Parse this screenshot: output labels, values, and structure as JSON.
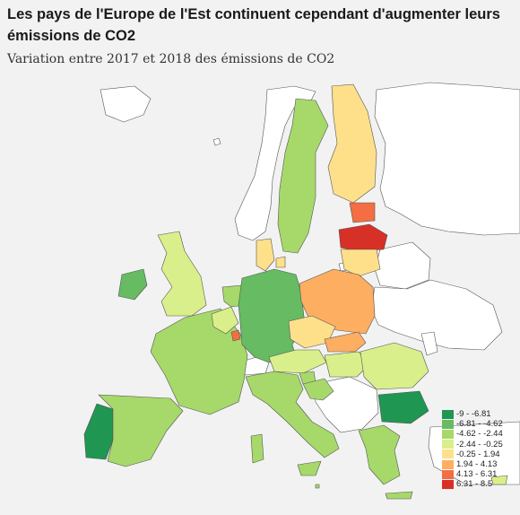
{
  "title": "Les pays de l'Europe de l'Est continuent cependant d'augmenter leurs émissions de CO2",
  "subtitle": "Variation entre 2017 et 2018 des émissions de CO2",
  "legend": [
    {
      "label": "-9 - -6.81",
      "color": "#1f9651"
    },
    {
      "label": "-6.81 - -4.62",
      "color": "#66bb63"
    },
    {
      "label": "-4.62 - -2.44",
      "color": "#a6d96a"
    },
    {
      "label": "-2.44 - -0.25",
      "color": "#d9ef8b"
    },
    {
      "label": "-0.25 - 1.94",
      "color": "#fee08b"
    },
    {
      "label": "1.94 - 4.13",
      "color": "#fdae61"
    },
    {
      "label": "4.13 - 6.31",
      "color": "#f46d43"
    },
    {
      "label": "6.31 - 8.5",
      "color": "#d73027"
    }
  ],
  "colors": {
    "nodata": "#ffffff",
    "border": "#555555"
  }
}
